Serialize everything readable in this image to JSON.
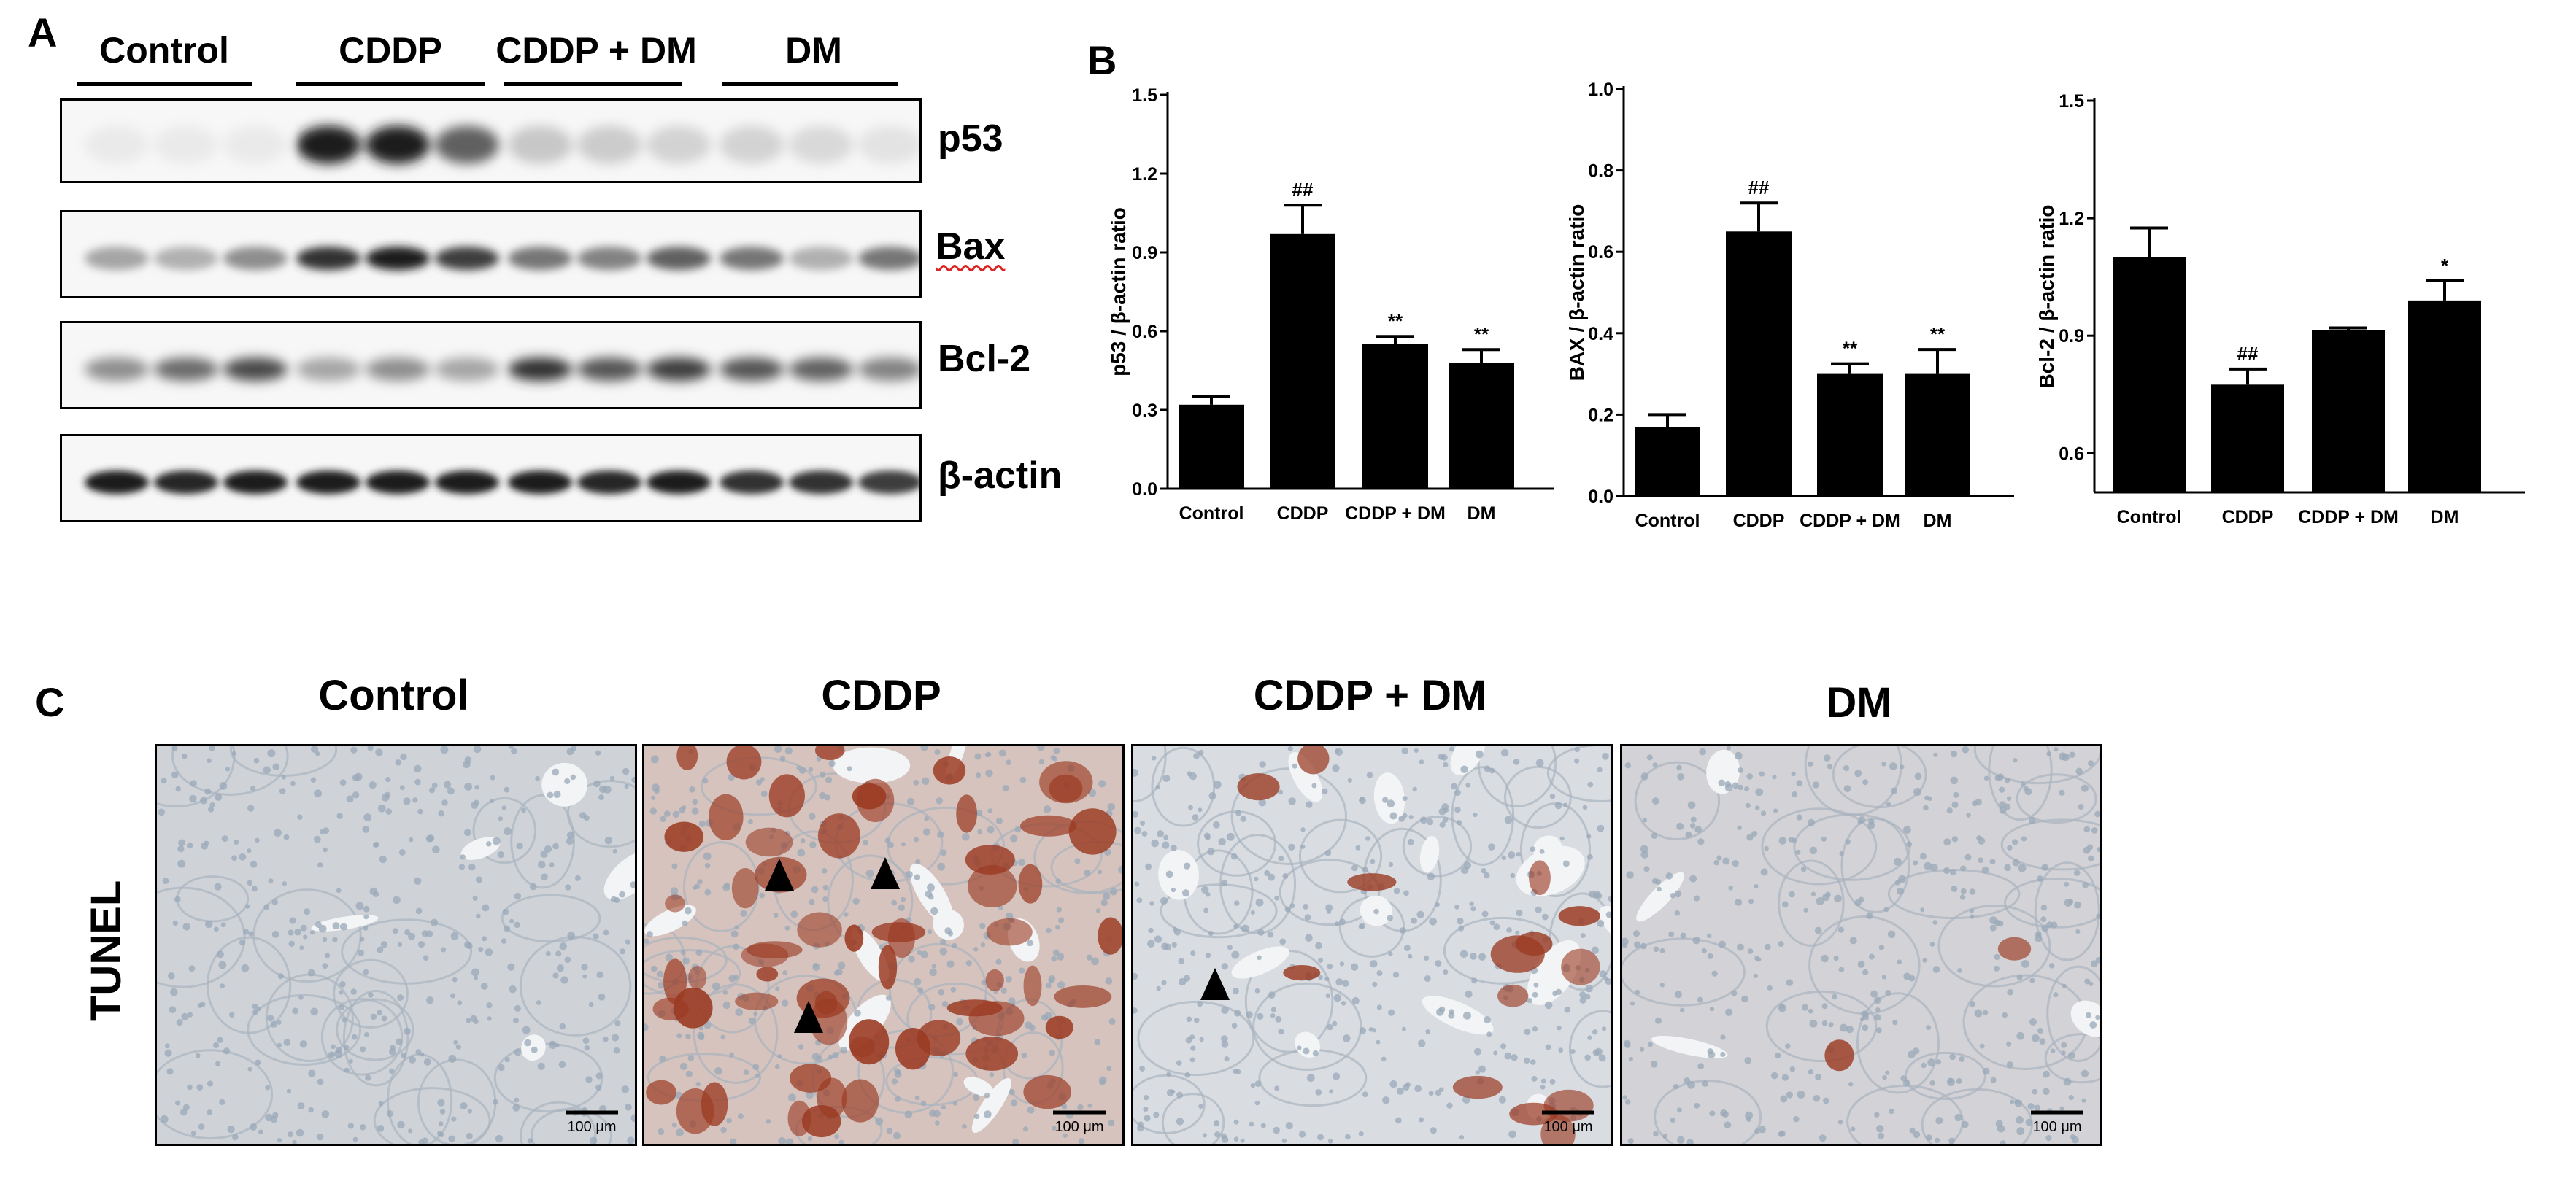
{
  "panel_a": {
    "letter": "A",
    "groups": [
      "Control",
      "CDDP",
      "CDDP + DM",
      "DM"
    ],
    "blots": [
      "p53",
      "Bax",
      "Bcl-2",
      "β-actin"
    ]
  },
  "panel_b": {
    "letter": "B"
  },
  "panel_c": {
    "letter": "C",
    "titles": [
      "Control",
      "CDDP",
      "CDDP + DM",
      "DM"
    ],
    "side_label": "TUNEL",
    "scale_label": "100 μm"
  },
  "chart_data": [
    {
      "type": "bar",
      "categories": [
        "Control",
        "CDDP",
        "CDDP + DM",
        "DM"
      ],
      "values": [
        0.32,
        0.97,
        0.55,
        0.48
      ],
      "errors": [
        0.03,
        0.11,
        0.03,
        0.05
      ],
      "annotations": [
        "",
        "##",
        "**",
        "**"
      ],
      "ylabel": "p53 / β-actin ratio",
      "ylim": [
        0,
        1.5
      ],
      "yticks": [
        "0.0",
        "0.3",
        "0.6",
        "0.9",
        "1.2",
        "1.5"
      ],
      "bar_color": "#000000"
    },
    {
      "type": "bar",
      "categories": [
        "Control",
        "CDDP",
        "CDDP + DM",
        "DM"
      ],
      "values": [
        0.17,
        0.65,
        0.3,
        0.3
      ],
      "errors": [
        0.03,
        0.07,
        0.025,
        0.06
      ],
      "annotations": [
        "",
        "##",
        "**",
        "**"
      ],
      "ylabel": "BAX / β-actin ratio",
      "ylim": [
        0,
        1.0
      ],
      "yticks": [
        "0.0",
        "0.2",
        "0.4",
        "0.6",
        "0.8",
        "1.0"
      ],
      "bar_color": "#000000"
    },
    {
      "type": "bar",
      "categories": [
        "Control",
        "CDDP",
        "CDDP + DM",
        "DM"
      ],
      "values": [
        1.1,
        0.775,
        0.915,
        0.99
      ],
      "errors": [
        0.075,
        0.04,
        0.005,
        0.05
      ],
      "annotations": [
        "",
        "##",
        "",
        "*"
      ],
      "ylabel": "Bcl-2 / β-actin ratio",
      "ylim": [
        0.5,
        1.5
      ],
      "yticks": [
        "0.6",
        "0.9",
        "1.2",
        "1.5"
      ],
      "yticks_values": [
        0.6,
        0.9,
        1.2,
        1.5
      ],
      "bar_color": "#000000"
    }
  ]
}
